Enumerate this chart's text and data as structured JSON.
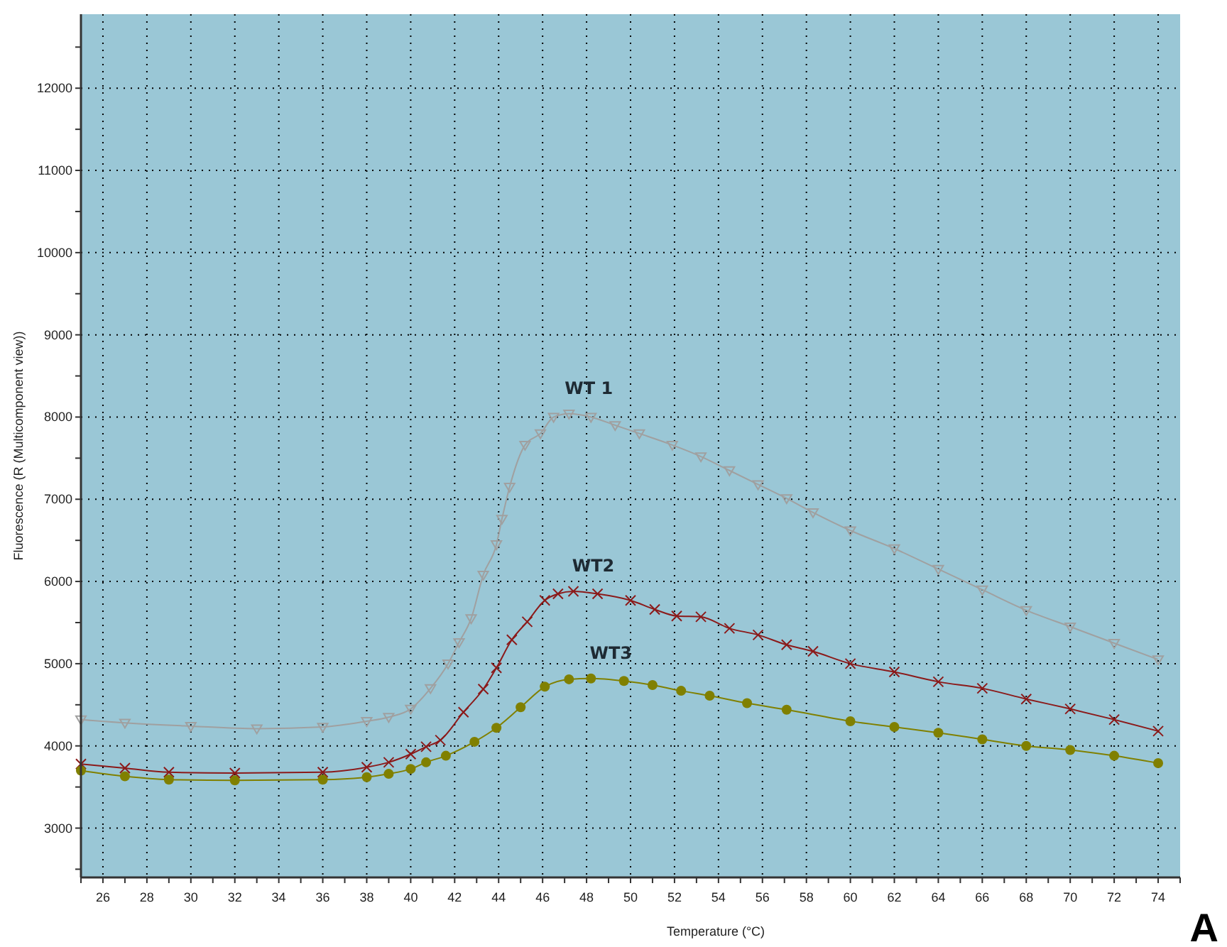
{
  "chart_data": {
    "type": "line",
    "xlabel": "Temperature (°C)",
    "ylabel": "Fluorescence (R (Multicomponent view))",
    "annotations": [
      "A"
    ],
    "xlim": [
      25,
      75
    ],
    "ylim": [
      2400,
      12900
    ],
    "xticks": [
      {
        "value": 25,
        "label": null
      },
      26,
      {
        "value": 27,
        "label": null
      },
      28,
      {
        "value": 29,
        "label": null
      },
      30,
      {
        "value": 31,
        "label": null
      },
      32,
      {
        "value": 33,
        "label": null
      },
      34,
      {
        "value": 35,
        "label": null
      },
      36,
      {
        "value": 37,
        "label": null
      },
      38,
      {
        "value": 39,
        "label": null
      },
      40,
      {
        "value": 41,
        "label": null
      },
      42,
      {
        "value": 43,
        "label": null
      },
      44,
      {
        "value": 45,
        "label": null
      },
      46,
      {
        "value": 47,
        "label": null
      },
      48,
      {
        "value": 49,
        "label": null
      },
      50,
      {
        "value": 51,
        "label": null
      },
      52,
      {
        "value": 53,
        "label": null
      },
      54,
      {
        "value": 55,
        "label": null
      },
      56,
      {
        "value": 57,
        "label": null
      },
      58,
      {
        "value": 59,
        "label": null
      },
      60,
      {
        "value": 61,
        "label": null
      },
      62,
      {
        "value": 63,
        "label": null
      },
      64,
      {
        "value": 65,
        "label": null
      },
      66,
      {
        "value": 67,
        "label": null
      },
      68,
      {
        "value": 69,
        "label": null
      },
      70,
      {
        "value": 71,
        "label": null
      },
      72,
      {
        "value": 73,
        "label": null
      },
      74,
      {
        "value": 75,
        "label": null
      }
    ],
    "yticks": [
      {
        "value": 2500,
        "label": null
      },
      3000,
      {
        "value": 3500,
        "label": null
      },
      4000,
      {
        "value": 4500,
        "label": null
      },
      5000,
      {
        "value": 5500,
        "label": null
      },
      6000,
      {
        "value": 6500,
        "label": null
      },
      7000,
      {
        "value": 7500,
        "label": null
      },
      8000,
      {
        "value": 8500,
        "label": null
      },
      9000,
      {
        "value": 9500,
        "label": null
      },
      10000,
      {
        "value": 10500,
        "label": null
      },
      11000,
      {
        "value": 11500,
        "label": null
      },
      12000,
      {
        "value": 12500,
        "label": null
      }
    ],
    "grid": true,
    "series": [
      {
        "name": "WT 1",
        "color": "#a0a0a0",
        "marker": "triangle",
        "x": [
          25,
          27,
          30,
          33,
          36,
          38,
          39,
          40,
          40.9,
          41.7,
          42.2,
          42.75,
          43.3,
          43.9,
          44.15,
          44.5,
          45.2,
          45.9,
          46.5,
          47.2,
          48.2,
          49.3,
          50.4,
          51.9,
          53.2,
          54.5,
          55.8,
          57.1,
          58.3,
          60,
          62,
          64,
          66,
          68,
          70,
          72,
          74
        ],
        "values": [
          4320,
          4280,
          4240,
          4210,
          4230,
          4300,
          4350,
          4450,
          4700,
          5000,
          5260,
          5550,
          6080,
          6450,
          6760,
          7150,
          7660,
          7800,
          8000,
          8040,
          8000,
          7900,
          7800,
          7660,
          7520,
          7350,
          7180,
          7010,
          6840,
          6620,
          6400,
          6150,
          5900,
          5650,
          5450,
          5250,
          5050
        ]
      },
      {
        "name": "WT2",
        "color": "#8b1a1a",
        "marker": "cross",
        "x": [
          25,
          27,
          29,
          32,
          36,
          38,
          39,
          40,
          40.7,
          41.35,
          42.4,
          43.3,
          43.9,
          44.6,
          45.3,
          46.1,
          46.7,
          47.4,
          48.5,
          50,
          51.1,
          52.1,
          53.2,
          54.5,
          55.8,
          57.1,
          58.3,
          60,
          62,
          64,
          66,
          68,
          70,
          72,
          74
        ],
        "values": [
          3780,
          3730,
          3680,
          3670,
          3680,
          3740,
          3800,
          3900,
          3990,
          4070,
          4410,
          4690,
          4950,
          5290,
          5510,
          5770,
          5850,
          5880,
          5850,
          5770,
          5660,
          5580,
          5570,
          5430,
          5350,
          5230,
          5150,
          5000,
          4900,
          4780,
          4700,
          4570,
          4450,
          4320,
          4180
        ]
      },
      {
        "name": "WT3",
        "color": "#808000",
        "marker": "circle",
        "x": [
          25,
          27,
          29,
          32,
          36,
          38,
          39,
          40,
          40.7,
          41.6,
          42.9,
          43.9,
          45,
          46.1,
          47.2,
          48.2,
          49.7,
          51,
          52.3,
          53.6,
          55.3,
          57.1,
          60,
          62,
          64,
          66,
          68,
          70,
          72,
          74
        ],
        "values": [
          3700,
          3630,
          3590,
          3580,
          3590,
          3620,
          3660,
          3720,
          3800,
          3880,
          4050,
          4220,
          4470,
          4720,
          4810,
          4820,
          4790,
          4740,
          4670,
          4610,
          4520,
          4440,
          4300,
          4230,
          4160,
          4080,
          4000,
          3950,
          3880,
          3790
        ]
      }
    ]
  }
}
